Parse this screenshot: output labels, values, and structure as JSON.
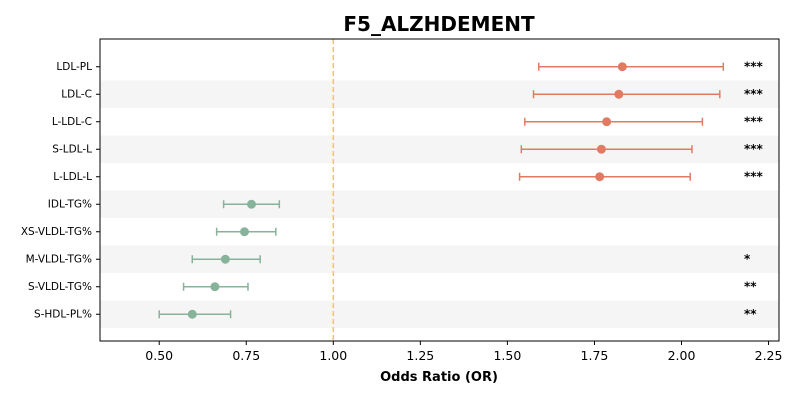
{
  "chart_data": {
    "type": "forest",
    "title": "F5_ALZHDEMENT",
    "xlabel": "Odds Ratio (OR)",
    "xlim": [
      0.33,
      2.28
    ],
    "xticks": [
      "0.50",
      "0.75",
      "1.00",
      "1.25",
      "1.50",
      "1.75",
      "2.00",
      "2.25"
    ],
    "reference_line": 1.0,
    "colors": {
      "positive": "#e07b62",
      "negative": "#86b39a",
      "reference": "#f0c36d",
      "band": "#f5f5f5"
    },
    "rows": [
      {
        "label": "LDL-PL",
        "or": 1.83,
        "lo": 1.59,
        "hi": 2.12,
        "sig": "***"
      },
      {
        "label": "LDL-C",
        "or": 1.82,
        "lo": 1.575,
        "hi": 2.11,
        "sig": "***"
      },
      {
        "label": "L-LDL-C",
        "or": 1.785,
        "lo": 1.55,
        "hi": 2.06,
        "sig": "***"
      },
      {
        "label": "S-LDL-L",
        "or": 1.77,
        "lo": 1.54,
        "hi": 2.03,
        "sig": "***"
      },
      {
        "label": "L-LDL-L",
        "or": 1.765,
        "lo": 1.535,
        "hi": 2.025,
        "sig": "***"
      },
      {
        "label": "IDL-TG%",
        "or": 0.765,
        "lo": 0.685,
        "hi": 0.845,
        "sig": ""
      },
      {
        "label": "XS-VLDL-TG%",
        "or": 0.745,
        "lo": 0.665,
        "hi": 0.835,
        "sig": ""
      },
      {
        "label": "M-VLDL-TG%",
        "or": 0.69,
        "lo": 0.595,
        "hi": 0.79,
        "sig": "*"
      },
      {
        "label": "S-VLDL-TG%",
        "or": 0.66,
        "lo": 0.57,
        "hi": 0.755,
        "sig": "**"
      },
      {
        "label": "S-HDL-PL%",
        "or": 0.595,
        "lo": 0.5,
        "hi": 0.705,
        "sig": "**"
      }
    ]
  }
}
